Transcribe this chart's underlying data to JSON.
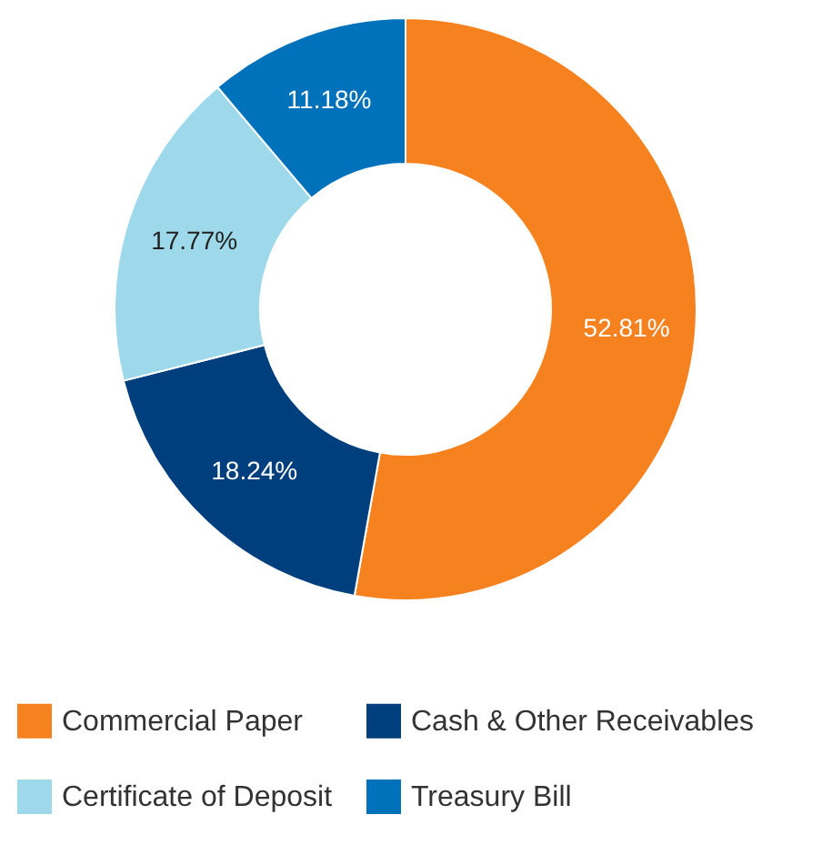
{
  "chart_data": {
    "type": "donut",
    "categories": [
      "Commercial Paper",
      "Cash & Other Receivables",
      "Certificate of Deposit",
      "Treasury Bill"
    ],
    "values": [
      52.81,
      18.24,
      17.77,
      11.18
    ],
    "value_labels": [
      "52.81%",
      "18.24%",
      "17.77%",
      "11.18%"
    ],
    "colors": [
      "#f5821f",
      "#003f7d",
      "#9dd9ea",
      "#0072bc"
    ],
    "legend": "bottom"
  }
}
